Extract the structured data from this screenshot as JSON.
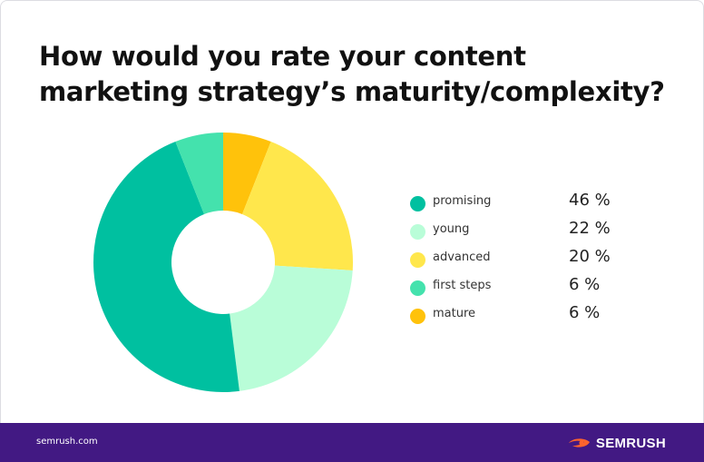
{
  "title": "How would you rate your content marketing strategy’s maturity/complexity?",
  "footer": {
    "site": "semrush.com",
    "brand": "SEMRUSH"
  },
  "chart_data": {
    "type": "pie",
    "donut": true,
    "title": "How would you rate your content marketing strategy’s maturity/complexity?",
    "legend_position": "right",
    "slices": [
      {
        "label": "promising",
        "value": 46,
        "display": "46 %",
        "color": "#00c0a0"
      },
      {
        "label": "young",
        "value": 22,
        "display": "22 %",
        "color": "#b9fdd8"
      },
      {
        "label": "advanced",
        "value": 20,
        "display": "20 %",
        "color": "#ffe74c"
      },
      {
        "label": "first steps",
        "value": 6,
        "display": "6 %",
        "color": "#44e2ad"
      },
      {
        "label": "mature",
        "value": 6,
        "display": "6 %",
        "color": "#ffc20b"
      }
    ],
    "draw_order": [
      "mature",
      "advanced",
      "young",
      "promising",
      "first steps"
    ]
  }
}
